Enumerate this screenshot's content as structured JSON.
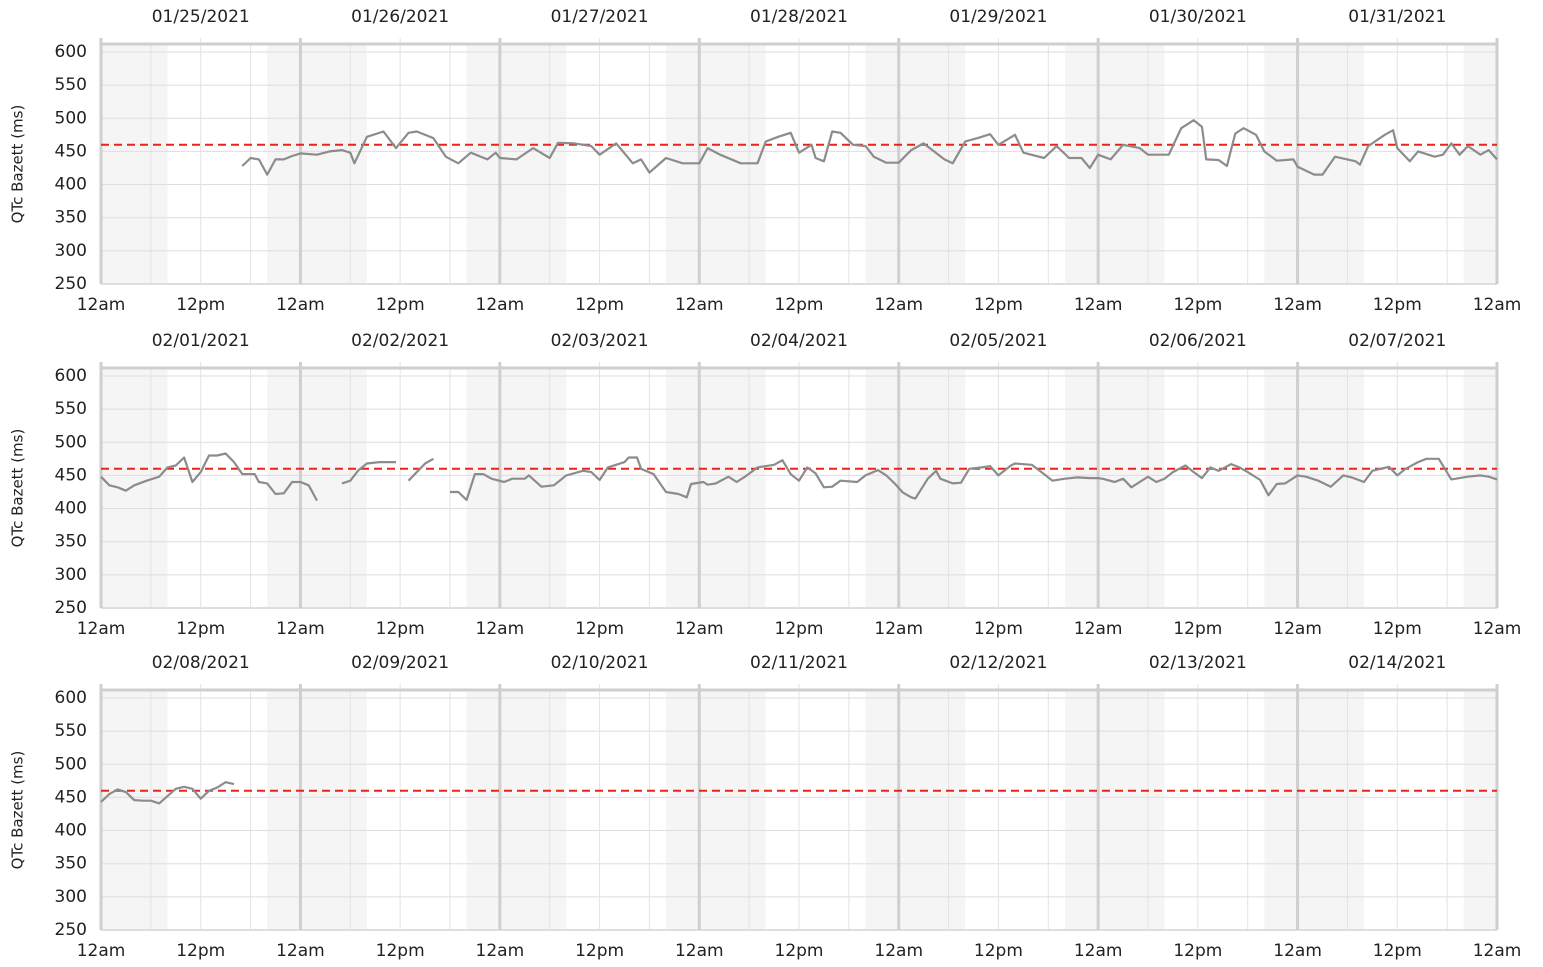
{
  "chart_data": [
    {
      "type": "line",
      "y_label": "QTc Bazett (ms)",
      "day_labels": [
        "01/25/2021",
        "01/26/2021",
        "01/27/2021",
        "01/28/2021",
        "01/29/2021",
        "01/30/2021",
        "01/31/2021"
      ],
      "xlim": [
        0,
        168
      ],
      "xticks": [
        {
          "value": 0,
          "label": "12am"
        },
        {
          "value": 12,
          "label": "12pm"
        },
        {
          "value": 24,
          "label": "12am"
        },
        {
          "value": 36,
          "label": "12pm"
        },
        {
          "value": 48,
          "label": "12am"
        },
        {
          "value": 60,
          "label": "12pm"
        },
        {
          "value": 72,
          "label": "12am"
        },
        {
          "value": 84,
          "label": "12pm"
        },
        {
          "value": 96,
          "label": "12am"
        },
        {
          "value": 108,
          "label": "12pm"
        },
        {
          "value": 120,
          "label": "12am"
        },
        {
          "value": 132,
          "label": "12pm"
        },
        {
          "value": 144,
          "label": "12am"
        },
        {
          "value": 156,
          "label": "12pm"
        },
        {
          "value": 168,
          "label": "12am"
        }
      ],
      "ylim": [
        250,
        612
      ],
      "yticks": [
        250,
        300,
        350,
        400,
        450,
        500,
        550,
        600
      ],
      "grid": true,
      "reference_line": 460,
      "reference_color": "#e8231c",
      "color": "#8c8c8c",
      "x": [
        17,
        18,
        19,
        20,
        21,
        22,
        23,
        24,
        26,
        27.5,
        29,
        30,
        30.5,
        32,
        34,
        35.5,
        37,
        38,
        40,
        41.5,
        43,
        44.5,
        46.5,
        47.5,
        48,
        50,
        52,
        54,
        55,
        57,
        59,
        60,
        62,
        64,
        65,
        66,
        68,
        70,
        71,
        72,
        73,
        74.5,
        77,
        79,
        80,
        81.5,
        83,
        84,
        85.5,
        86,
        87,
        88,
        89,
        90.5,
        92,
        93,
        94.5,
        96,
        97.5,
        99,
        101.5,
        102.5,
        104,
        105.5,
        107,
        108,
        110,
        111,
        113.5,
        115,
        116.5,
        118,
        119,
        120,
        121.5,
        123,
        125,
        126,
        128.5,
        130,
        131.5,
        132.5,
        133,
        134.5,
        135.5,
        136.5,
        137.5,
        139,
        140,
        141.5,
        143.5,
        144,
        146,
        147,
        148.5,
        151,
        151.5,
        152.5,
        154.5,
        155.5,
        156,
        157.5,
        158.5,
        160.5,
        161.5,
        162.5,
        163.5,
        164.5,
        166,
        167,
        168
      ],
      "values": [
        428,
        440,
        438,
        415,
        438,
        438,
        443,
        447,
        445,
        450,
        452,
        448,
        432,
        472,
        480,
        455,
        478,
        480,
        470,
        442,
        432,
        448,
        438,
        448,
        440,
        438,
        455,
        440,
        463,
        462,
        458,
        445,
        462,
        432,
        438,
        418,
        440,
        432,
        432,
        432,
        455,
        445,
        432,
        432,
        465,
        472,
        478,
        448,
        460,
        440,
        435,
        480,
        478,
        460,
        458,
        442,
        433,
        433,
        452,
        462,
        438,
        432,
        465,
        470,
        476,
        460,
        475,
        448,
        440,
        458,
        440,
        440,
        425,
        445,
        438,
        460,
        455,
        445,
        445,
        485,
        497,
        487,
        438,
        437,
        428,
        477,
        485,
        475,
        450,
        436,
        438,
        427,
        415,
        415,
        442,
        435,
        430,
        458,
        475,
        482,
        455,
        435,
        450,
        442,
        445,
        462,
        445,
        458,
        445,
        452,
        438
      ]
    },
    {
      "type": "line",
      "y_label": "QTc Bazett (ms)",
      "day_labels": [
        "02/01/2021",
        "02/02/2021",
        "02/03/2021",
        "02/04/2021",
        "02/05/2021",
        "02/06/2021",
        "02/07/2021"
      ],
      "xlim": [
        0,
        168
      ],
      "xticks": [
        {
          "value": 0,
          "label": "12am"
        },
        {
          "value": 12,
          "label": "12pm"
        },
        {
          "value": 24,
          "label": "12am"
        },
        {
          "value": 36,
          "label": "12pm"
        },
        {
          "value": 48,
          "label": "12am"
        },
        {
          "value": 60,
          "label": "12pm"
        },
        {
          "value": 72,
          "label": "12am"
        },
        {
          "value": 84,
          "label": "12pm"
        },
        {
          "value": 96,
          "label": "12am"
        },
        {
          "value": 108,
          "label": "12pm"
        },
        {
          "value": 120,
          "label": "12am"
        },
        {
          "value": 132,
          "label": "12pm"
        },
        {
          "value": 144,
          "label": "12am"
        },
        {
          "value": 156,
          "label": "12pm"
        },
        {
          "value": 168,
          "label": "12am"
        }
      ],
      "ylim": [
        250,
        612
      ],
      "yticks": [
        250,
        300,
        350,
        400,
        450,
        500,
        550,
        600
      ],
      "grid": true,
      "reference_line": 460,
      "reference_color": "#e8231c",
      "color": "#8c8c8c",
      "x": [
        0,
        1,
        2,
        3,
        4,
        5.5,
        7,
        8,
        9,
        10,
        11,
        12,
        13,
        14,
        15,
        16,
        17,
        18.5,
        19,
        20,
        21,
        22,
        23,
        24,
        25,
        26,
        27.5,
        29,
        30,
        31,
        32,
        33.5,
        35.5,
        36.5,
        37,
        39,
        40,
        41,
        42,
        43,
        44,
        45,
        46,
        47,
        48.5,
        49.5,
        51,
        51.5,
        53,
        54.5,
        56,
        58,
        59,
        60,
        61,
        63,
        63.5,
        64.5,
        65,
        66.5,
        68,
        69.5,
        70.5,
        71,
        72.5,
        73,
        74,
        75.5,
        76.5,
        77.5,
        79,
        81,
        82,
        83,
        84,
        85,
        86,
        87,
        88,
        89,
        91,
        92,
        93.5,
        94.5,
        95.5,
        96.5,
        97.5,
        98,
        99.5,
        100.5,
        101,
        102.5,
        103.5,
        104.5,
        106,
        107,
        108,
        109.5,
        110,
        112,
        113.5,
        114.5,
        116,
        117.5,
        119,
        120,
        120.5,
        122,
        123,
        124,
        126,
        127,
        128,
        129,
        130.5,
        131.5,
        132.5,
        133.5,
        134.5,
        136,
        137,
        138,
        139.5,
        140.5,
        141.5,
        142.5,
        144,
        145,
        146.5,
        148,
        149.5,
        150.5,
        152,
        153,
        154,
        155,
        156,
        157,
        158.5,
        159.5,
        161,
        162.5,
        163.5,
        164.5,
        166,
        167,
        168
      ],
      "values": [
        448,
        435,
        432,
        427,
        435,
        442,
        448,
        462,
        465,
        477,
        440,
        455,
        480,
        480,
        483,
        470,
        452,
        452,
        440,
        438,
        422,
        423,
        440,
        440,
        435,
        412,
        null,
        438,
        442,
        458,
        468,
        470,
        470,
        null,
        442,
        468,
        475,
        null,
        425,
        425,
        413,
        452,
        452,
        445,
        440,
        445,
        445,
        450,
        433,
        435,
        450,
        457,
        455,
        443,
        462,
        470,
        477,
        477,
        460,
        452,
        425,
        422,
        417,
        437,
        440,
        436,
        438,
        448,
        440,
        448,
        462,
        466,
        473,
        452,
        442,
        462,
        453,
        432,
        433,
        442,
        440,
        450,
        458,
        450,
        438,
        424,
        417,
        415,
        445,
        457,
        445,
        438,
        439,
        460,
        462,
        464,
        450,
        465,
        468,
        466,
        452,
        442,
        445,
        447,
        446,
        446,
        445,
        440,
        445,
        432,
        448,
        440,
        445,
        455,
        465,
        455,
        446,
        462,
        457,
        467,
        462,
        455,
        443,
        420,
        437,
        438,
        450,
        448,
        442,
        433,
        450,
        447,
        440,
        457,
        460,
        463,
        450,
        460,
        470,
        475,
        475,
        444,
        446,
        448,
        450,
        448,
        444
      ]
    },
    {
      "type": "line",
      "y_label": "QTc Bazett (ms)",
      "day_labels": [
        "02/08/2021",
        "02/09/2021",
        "02/10/2021",
        "02/11/2021",
        "02/12/2021",
        "02/13/2021",
        "02/14/2021"
      ],
      "xlim": [
        0,
        168
      ],
      "xticks": [
        {
          "value": 0,
          "label": "12am"
        },
        {
          "value": 12,
          "label": "12pm"
        },
        {
          "value": 24,
          "label": "12am"
        },
        {
          "value": 36,
          "label": "12pm"
        },
        {
          "value": 48,
          "label": "12am"
        },
        {
          "value": 60,
          "label": "12pm"
        },
        {
          "value": 72,
          "label": "12am"
        },
        {
          "value": 84,
          "label": "12pm"
        },
        {
          "value": 96,
          "label": "12am"
        },
        {
          "value": 108,
          "label": "12pm"
        },
        {
          "value": 120,
          "label": "12am"
        },
        {
          "value": 132,
          "label": "12pm"
        },
        {
          "value": 144,
          "label": "12am"
        },
        {
          "value": 156,
          "label": "12pm"
        },
        {
          "value": 168,
          "label": "12am"
        }
      ],
      "ylim": [
        250,
        612
      ],
      "yticks": [
        250,
        300,
        350,
        400,
        450,
        500,
        550,
        600
      ],
      "grid": true,
      "reference_line": 460,
      "reference_color": "#e8231c",
      "color": "#8c8c8c",
      "x": [
        0,
        1,
        2,
        3,
        4,
        5,
        6,
        7,
        8,
        9,
        10,
        11,
        12,
        13,
        14,
        15,
        16
      ],
      "values": [
        443,
        455,
        462,
        458,
        446,
        445,
        445,
        441,
        452,
        463,
        466,
        463,
        448,
        460,
        465,
        473,
        470
      ]
    }
  ]
}
